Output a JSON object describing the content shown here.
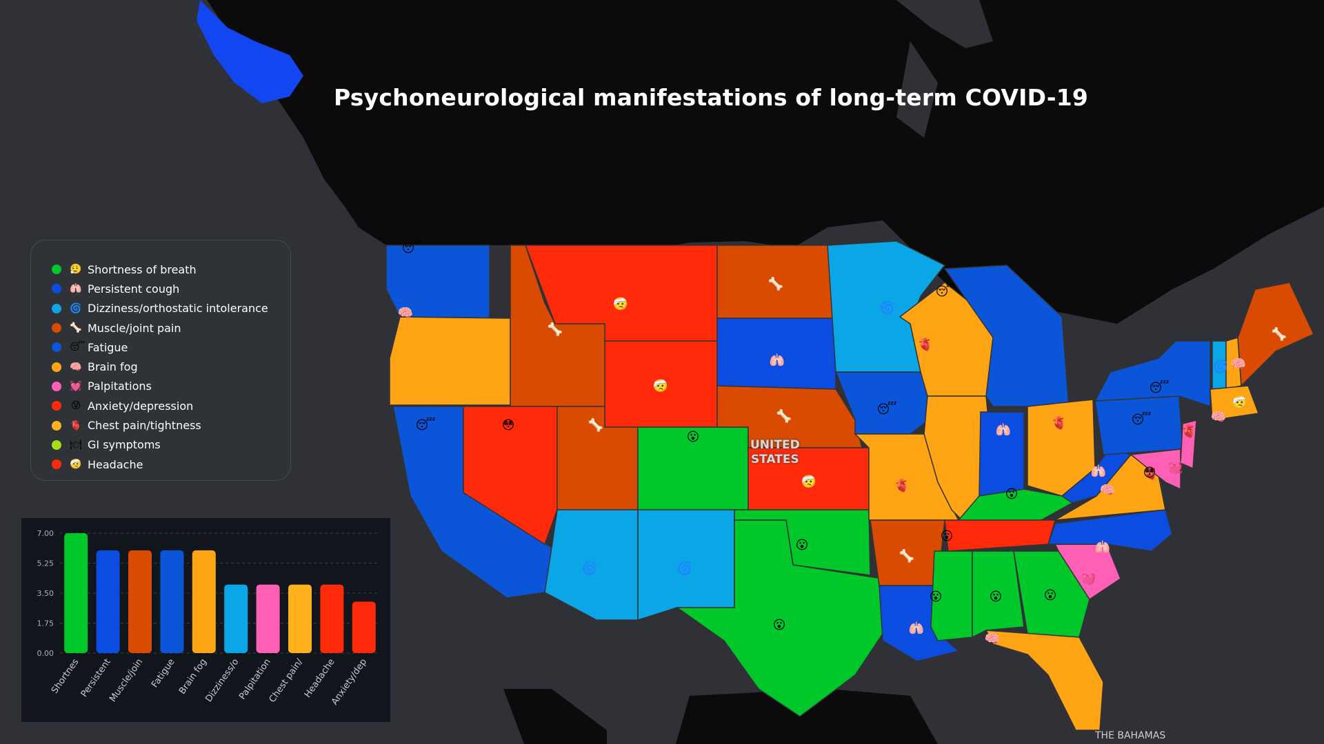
{
  "title": "Psychoneurological manifestations of long-term COVID-19",
  "map_labels": {
    "country_line1": "UNITED",
    "country_line2": "STATES",
    "bahamas": "THE BAHAMAS"
  },
  "legend": [
    {
      "label": "Shortness of breath",
      "color": "#00c82a",
      "icon": "breath-emoji",
      "emoji": "😮‍💨"
    },
    {
      "label": "Persistent cough",
      "color": "#0a4de0",
      "icon": "lungs-emoji",
      "emoji": "🫁"
    },
    {
      "label": "Dizziness/orthostatic intolerance",
      "color": "#0aa6e6",
      "icon": "spiral-emoji",
      "emoji": "🌀"
    },
    {
      "label": "Muscle/joint pain",
      "color": "#d94b00",
      "icon": "bone-emoji",
      "emoji": "🦴"
    },
    {
      "label": "Fatigue",
      "color": "#0a55d8",
      "icon": "tired-face-emoji",
      "emoji": "😴"
    },
    {
      "label": "Brain fog",
      "color": "#ffa515",
      "icon": "brain-emoji",
      "emoji": "🧠"
    },
    {
      "label": "Palpitations",
      "color": "#ff5fb4",
      "icon": "heart-emoji",
      "emoji": "💓"
    },
    {
      "label": "Anxiety/depression",
      "color": "#ff2a0a",
      "icon": "anxious-face-emoji",
      "emoji": "😰"
    },
    {
      "label": "Chest pain/tightness",
      "color": "#ffb21e",
      "icon": "anatomical-heart-emoji",
      "emoji": "🫀"
    },
    {
      "label": "GI symptoms",
      "color": "#a7dd14",
      "icon": "stomach-emoji",
      "emoji": "🍽"
    },
    {
      "label": "Headache",
      "color": "#ff2a0a",
      "icon": "headache-face-emoji",
      "emoji": "🤕"
    }
  ],
  "chart_data": {
    "type": "bar",
    "categories": [
      "Shortnes",
      "Persistent",
      "Muscle/join",
      "Fatigue",
      "Brain fog",
      "Dizziness/o",
      "Palpitation",
      "Chest pain/",
      "Headache",
      "Anxiety/dep"
    ],
    "values": [
      7,
      6,
      6,
      6,
      6,
      4,
      4,
      4,
      4,
      3
    ],
    "colors": [
      "#00c82a",
      "#0a4de0",
      "#d94b00",
      "#0a55d8",
      "#ffa515",
      "#0aa6e6",
      "#ff5fb4",
      "#ffb21e",
      "#ff2a0a",
      "#ff2a0a"
    ],
    "y_ticks": [
      "0.00",
      "1.75",
      "3.50",
      "5.25",
      "7.00"
    ],
    "ylim": [
      0,
      7
    ],
    "grid": true
  }
}
